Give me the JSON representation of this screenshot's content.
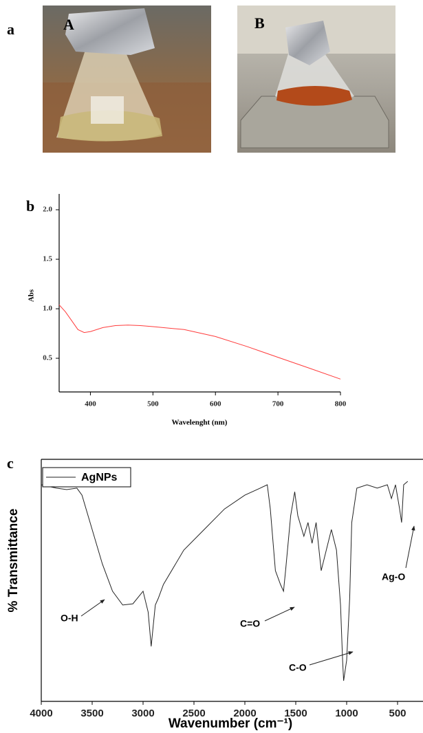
{
  "figure": {
    "panel_labels": [
      "a",
      "b",
      "c"
    ],
    "photos": [
      {
        "label": "A"
      },
      {
        "label": "B"
      }
    ]
  },
  "chart_data": [
    {
      "type": "line",
      "y_label": "Abs",
      "x_label": "Wavelenght (nm)",
      "x": [
        350,
        360,
        370,
        380,
        390,
        400,
        420,
        440,
        460,
        480,
        500,
        550,
        600,
        650,
        700,
        750,
        800
      ],
      "series": [
        {
          "color": "#ff3b3b",
          "values": [
            1.04,
            0.97,
            0.88,
            0.79,
            0.76,
            0.77,
            0.81,
            0.83,
            0.835,
            0.83,
            0.82,
            0.79,
            0.72,
            0.62,
            0.51,
            0.4,
            0.29
          ]
        }
      ],
      "xlim": [
        350,
        800
      ],
      "xticks": [
        400,
        500,
        600,
        700,
        800
      ],
      "ylim": [
        0.16,
        2.16
      ],
      "yticks": [
        0.5,
        {
          "value": 1,
          "label": "1.0"
        },
        1.5,
        {
          "value": 2,
          "label": "2.0"
        }
      ],
      "grid": false
    },
    {
      "type": "line",
      "y_label": "% Transmittance",
      "x_label": "Wavenumber (cm⁻¹)",
      "x": [
        4000,
        3850,
        3750,
        3650,
        3600,
        3500,
        3400,
        3300,
        3200,
        3100,
        3000,
        2950,
        2920,
        2900,
        2880,
        2850,
        2800,
        2600,
        2400,
        2200,
        2000,
        1850,
        1780,
        1750,
        1700,
        1650,
        1620,
        1600,
        1550,
        1510,
        1480,
        1420,
        1380,
        1340,
        1300,
        1250,
        1200,
        1150,
        1100,
        1060,
        1040,
        1030,
        1000,
        970,
        950,
        900,
        800,
        700,
        600,
        560,
        520,
        480,
        460,
        440,
        400
      ],
      "series": [
        {
          "name": "AgNPs",
          "color": "#222222",
          "values": [
            89.5,
            88.1,
            87.5,
            88.1,
            85.2,
            71.0,
            56.8,
            45.5,
            39.8,
            40.3,
            45.5,
            36.9,
            22.7,
            31.3,
            39.8,
            42.6,
            48.3,
            62.5,
            71.0,
            79.5,
            85.2,
            88.1,
            89.5,
            79.5,
            54.0,
            48.3,
            45.5,
            54.0,
            76.7,
            86.6,
            76.7,
            68.2,
            73.9,
            65.3,
            73.9,
            54.0,
            62.5,
            71.0,
            62.5,
            39.8,
            17.0,
            8.5,
            17.0,
            42.6,
            73.9,
            88.1,
            89.5,
            88.1,
            89.5,
            83.8,
            89.5,
            79.5,
            73.9,
            89.5,
            90.9
          ]
        }
      ],
      "xlim": [
        4000,
        250
      ],
      "xticks": [
        4000,
        3500,
        3000,
        2500,
        2000,
        1500,
        1000,
        500
      ],
      "ylim": [
        0,
        100
      ],
      "grid": false,
      "legend": "top-left",
      "annotations": [
        "O-H",
        "C=O",
        "C-O",
        "Ag-O"
      ]
    }
  ]
}
